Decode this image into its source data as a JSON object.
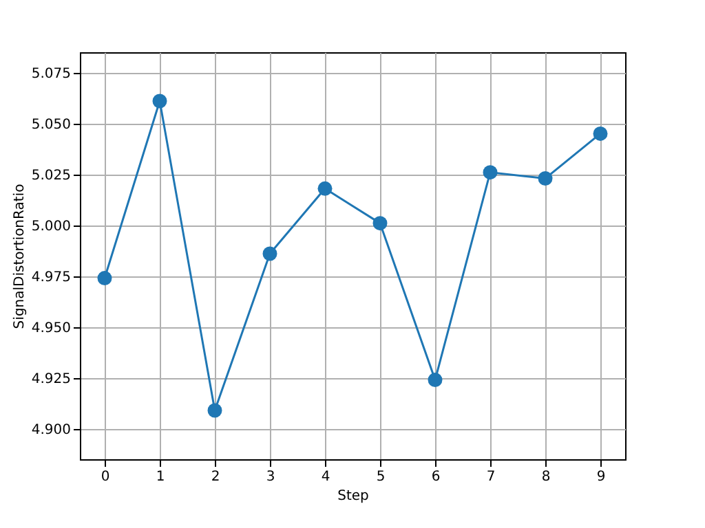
{
  "chart_data": {
    "type": "line",
    "xlabel": "Step",
    "ylabel": "SignalDistortionRatio",
    "x": [
      0,
      1,
      2,
      3,
      4,
      5,
      6,
      7,
      8,
      9
    ],
    "series": [
      {
        "color": "#1f77b4",
        "values": [
          4.974,
          5.061,
          4.909,
          4.986,
          5.018,
          5.001,
          4.924,
          5.026,
          5.023,
          5.045
        ]
      }
    ],
    "xlim": [
      -0.45,
      9.45
    ],
    "xticks": [
      0,
      1,
      2,
      3,
      4,
      5,
      6,
      7,
      8,
      9
    ],
    "ylim": [
      4.885,
      5.085
    ],
    "yticks": [
      {
        "value": 4.9,
        "label": "4.900"
      },
      {
        "value": 4.925,
        "label": "4.925"
      },
      {
        "value": 4.95,
        "label": "4.950"
      },
      {
        "value": 4.975,
        "label": "4.975"
      },
      {
        "value": 5.0,
        "label": "5.000"
      },
      {
        "value": 5.025,
        "label": "5.025"
      },
      {
        "value": 5.05,
        "label": "5.050"
      },
      {
        "value": 5.075,
        "label": "5.075"
      }
    ],
    "grid": true,
    "marker": "circle",
    "line_style": "solid"
  }
}
